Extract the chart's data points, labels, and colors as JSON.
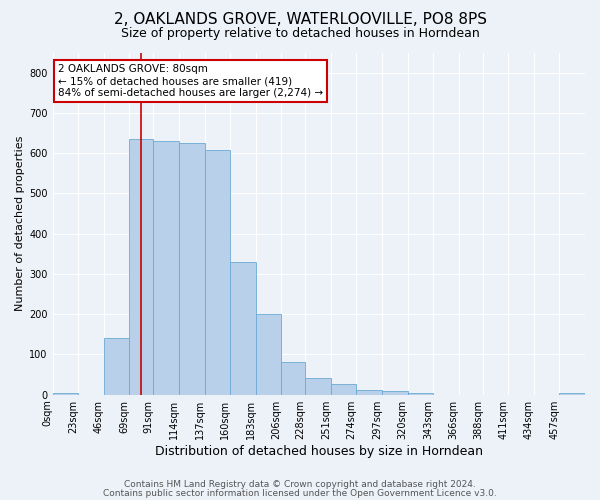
{
  "title": "2, OAKLANDS GROVE, WATERLOOVILLE, PO8 8PS",
  "subtitle": "Size of property relative to detached houses in Horndean",
  "xlabel": "Distribution of detached houses by size in Horndean",
  "ylabel": "Number of detached properties",
  "bin_edges": [
    0,
    23,
    46,
    69,
    91,
    114,
    137,
    160,
    183,
    206,
    228,
    251,
    274,
    297,
    320,
    343,
    366,
    388,
    411,
    434,
    457,
    480
  ],
  "bin_labels": [
    "0sqm",
    "23sqm",
    "46sqm",
    "69sqm",
    "91sqm",
    "114sqm",
    "137sqm",
    "160sqm",
    "183sqm",
    "206sqm",
    "228sqm",
    "251sqm",
    "274sqm",
    "297sqm",
    "320sqm",
    "343sqm",
    "366sqm",
    "388sqm",
    "411sqm",
    "434sqm",
    "457sqm"
  ],
  "bar_heights": [
    5,
    0,
    140,
    635,
    630,
    625,
    607,
    330,
    200,
    82,
    42,
    27,
    12,
    10,
    5,
    0,
    0,
    0,
    0,
    0,
    5
  ],
  "bar_color": "#b8d0ea",
  "bar_edge_color": "#6aaad4",
  "ylim": [
    0,
    850
  ],
  "yticks": [
    0,
    100,
    200,
    300,
    400,
    500,
    600,
    700,
    800
  ],
  "red_line_x": 80,
  "annotation_line1": "2 OAKLANDS GROVE: 80sqm",
  "annotation_line2": "← 15% of detached houses are smaller (419)",
  "annotation_line3": "84% of semi-detached houses are larger (2,274) →",
  "box_edge_color": "#cc0000",
  "footer_line1": "Contains HM Land Registry data © Crown copyright and database right 2024.",
  "footer_line2": "Contains public sector information licensed under the Open Government Licence v3.0.",
  "background_color": "#edf2f9",
  "grid_color": "#ffffff",
  "title_fontsize": 11,
  "subtitle_fontsize": 9,
  "ylabel_fontsize": 8,
  "xlabel_fontsize": 9,
  "tick_fontsize": 7,
  "annot_fontsize": 7.5,
  "footer_fontsize": 6.5
}
